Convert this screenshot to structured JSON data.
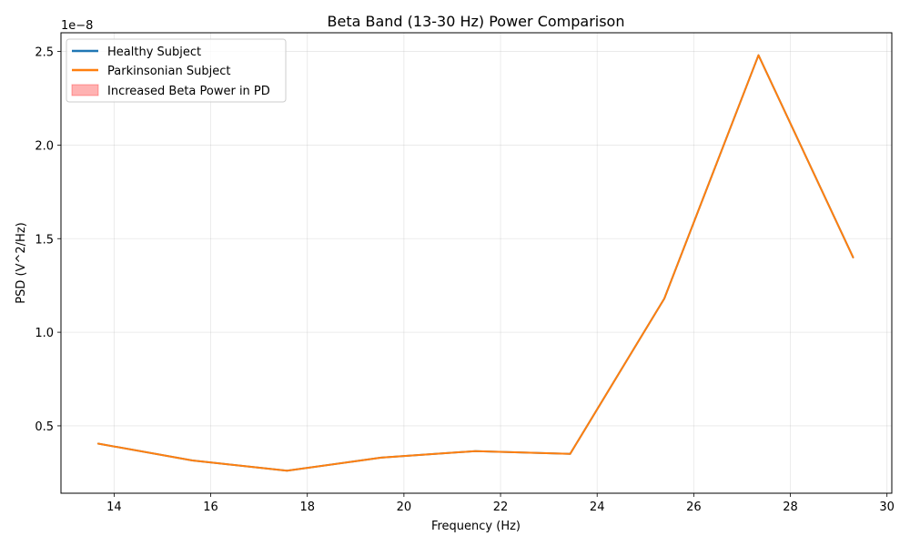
{
  "chart_data": {
    "type": "line",
    "title": "Beta Band (13-30 Hz) Power Comparison",
    "xlabel": "Frequency (Hz)",
    "ylabel": "PSD (V^2/Hz)",
    "y_offset_label": "1e−8",
    "xlim": [
      12.9,
      30.1
    ],
    "ylim": [
      1.4e-09,
      2.6e-08
    ],
    "x_ticks": [
      14,
      16,
      18,
      20,
      22,
      24,
      26,
      28,
      30
    ],
    "x_tick_labels": [
      "14",
      "16",
      "18",
      "20",
      "22",
      "24",
      "26",
      "28",
      "30"
    ],
    "y_ticks": [
      5e-09,
      1e-08,
      1.5e-08,
      2e-08,
      2.5e-08
    ],
    "y_tick_labels": [
      "0.5",
      "1.0",
      "1.5",
      "2.0",
      "2.5"
    ],
    "grid": true,
    "legend_position": "top-left",
    "series": [
      {
        "name": "Healthy Subject",
        "color": "#1f77b4",
        "x": [
          13.67,
          15.62,
          17.58,
          19.53,
          21.48,
          23.44,
          25.39,
          27.34,
          29.3
        ],
        "y": [
          4.05e-09,
          3.15e-09,
          2.6e-09,
          3.3e-09,
          3.65e-09,
          3.5e-09,
          1.18e-08,
          2.48e-08,
          1.4e-08
        ]
      },
      {
        "name": "Parkinsonian Subject",
        "color": "#ff7f0e",
        "x": [
          13.67,
          15.62,
          17.58,
          19.53,
          21.48,
          23.44,
          25.39,
          27.34,
          29.3
        ],
        "y": [
          4.05e-09,
          3.15e-09,
          2.6e-09,
          3.3e-09,
          3.65e-09,
          3.5e-09,
          1.18e-08,
          2.48e-08,
          1.4e-08
        ]
      }
    ],
    "fill": {
      "name": "Increased Beta Power in PD",
      "color": "#ff0000"
    }
  }
}
